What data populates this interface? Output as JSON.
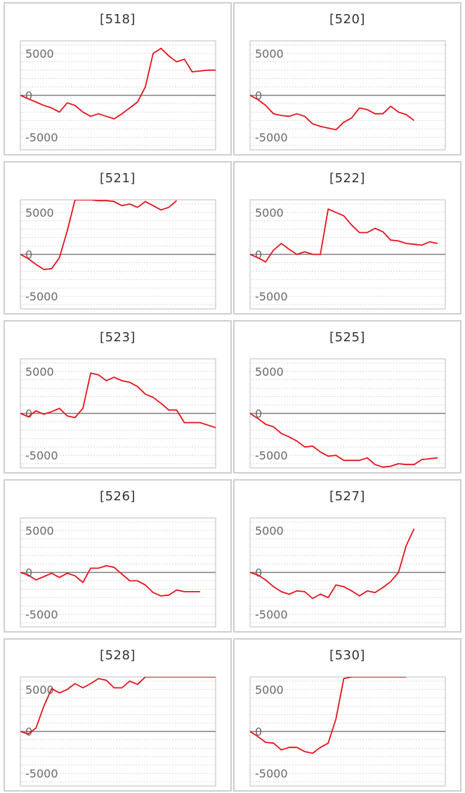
{
  "style": {
    "line_color": "#e8121c",
    "grid_color": "#d8d8d8",
    "zero_line_color": "#7f7f7f",
    "frame_color": "#c8c8c8"
  },
  "chart_data": [
    {
      "type": "line",
      "title": "[518]",
      "ylim": [
        -6500,
        6500
      ],
      "yticks": [
        5000,
        0,
        -5000
      ],
      "values": [
        0,
        -400,
        -800,
        -1200,
        -1500,
        -2000,
        -900,
        -1200,
        -2000,
        -2500,
        -2200,
        -2500,
        -2800,
        -2200,
        -1500,
        -800,
        1000,
        5000,
        5600,
        4700,
        4000,
        4300,
        2800,
        2900,
        3000,
        3000
      ]
    },
    {
      "type": "line",
      "title": "[520]",
      "ylim": [
        -6500,
        6500
      ],
      "yticks": [
        5000,
        0,
        -5000
      ],
      "values": [
        0,
        -500,
        -1200,
        -2200,
        -2400,
        -2500,
        -2200,
        -2500,
        -3400,
        -3700,
        -3900,
        -4100,
        -3200,
        -2700,
        -1500,
        -1700,
        -2200,
        -2200,
        -1300,
        -2000,
        -2300,
        -3000
      ]
    },
    {
      "type": "line",
      "title": "[521]",
      "ylim": [
        -6500,
        6500
      ],
      "yticks": [
        5000,
        0,
        -5000
      ],
      "values": [
        0,
        -500,
        -1200,
        -1800,
        -1700,
        -400,
        2800,
        6500,
        6700,
        6700,
        6400,
        6400,
        6300,
        5800,
        6000,
        5600,
        6300,
        5800,
        5300,
        5600,
        6400
      ]
    },
    {
      "type": "line",
      "title": "[522]",
      "ylim": [
        -6500,
        6500
      ],
      "yticks": [
        5000,
        0,
        -5000
      ],
      "values": [
        0,
        -400,
        -900,
        500,
        1300,
        600,
        0,
        300,
        0,
        0,
        5400,
        5000,
        4600,
        3500,
        2600,
        2600,
        3100,
        2700,
        1700,
        1600,
        1300,
        1200,
        1100,
        1500,
        1300
      ]
    },
    {
      "type": "line",
      "title": "[523]",
      "ylim": [
        -6500,
        6500
      ],
      "yticks": [
        5000,
        0,
        -5000
      ],
      "values": [
        0,
        -400,
        300,
        -100,
        200,
        600,
        -300,
        -500,
        600,
        4800,
        4600,
        3900,
        4300,
        3900,
        3700,
        3200,
        2300,
        1900,
        1200,
        400,
        400,
        -1100,
        -1100,
        -1100,
        -1400,
        -1700,
        -1600
      ]
    },
    {
      "type": "line",
      "title": "[525]",
      "ylim": [
        -6500,
        6500
      ],
      "yticks": [
        5000,
        0,
        -5000
      ],
      "values": [
        0,
        -600,
        -1300,
        -1600,
        -2400,
        -2800,
        -3300,
        -4000,
        -3900,
        -4600,
        -5100,
        -5000,
        -5600,
        -5600,
        -5600,
        -5300,
        -6100,
        -6400,
        -6300,
        -6000,
        -6100,
        -6100,
        -5500,
        -5400,
        -5300
      ]
    },
    {
      "type": "line",
      "title": "[526]",
      "ylim": [
        -6500,
        6500
      ],
      "yticks": [
        5000,
        0,
        -5000
      ],
      "values": [
        0,
        -300,
        -900,
        -500,
        -100,
        -600,
        -100,
        -400,
        -1200,
        500,
        500,
        800,
        600,
        -200,
        -1000,
        -1000,
        -1500,
        -2400,
        -2800,
        -2700,
        -2100,
        -2300,
        -2300,
        -2300
      ]
    },
    {
      "type": "line",
      "title": "[527]",
      "ylim": [
        -6500,
        6500
      ],
      "yticks": [
        5000,
        0,
        -5000
      ],
      "values": [
        0,
        -300,
        -900,
        -1700,
        -2300,
        -2600,
        -2200,
        -2300,
        -3100,
        -2600,
        -3000,
        -1500,
        -1700,
        -2200,
        -2800,
        -2200,
        -2400,
        -1800,
        -1100,
        0,
        3200,
        5200
      ]
    },
    {
      "type": "line",
      "title": "[528]",
      "ylim": [
        -6500,
        6500
      ],
      "yticks": [
        5000,
        0,
        -5000
      ],
      "values": [
        0,
        -300,
        400,
        3000,
        5100,
        4600,
        5000,
        5700,
        5200,
        5700,
        6300,
        6100,
        5200,
        5200,
        6000,
        5600,
        6500,
        6500,
        6500,
        6500,
        6500,
        6500,
        6500,
        6500,
        6500,
        6500
      ]
    },
    {
      "type": "line",
      "title": "[530]",
      "ylim": [
        -6500,
        6500
      ],
      "yticks": [
        5000,
        0,
        -5000
      ],
      "values": [
        0,
        -600,
        -1300,
        -1400,
        -2200,
        -1900,
        -1900,
        -2400,
        -2600,
        -1900,
        -1400,
        1500,
        6300,
        6500,
        6500,
        6500,
        6500,
        6500,
        6500,
        6500,
        6500
      ]
    }
  ]
}
